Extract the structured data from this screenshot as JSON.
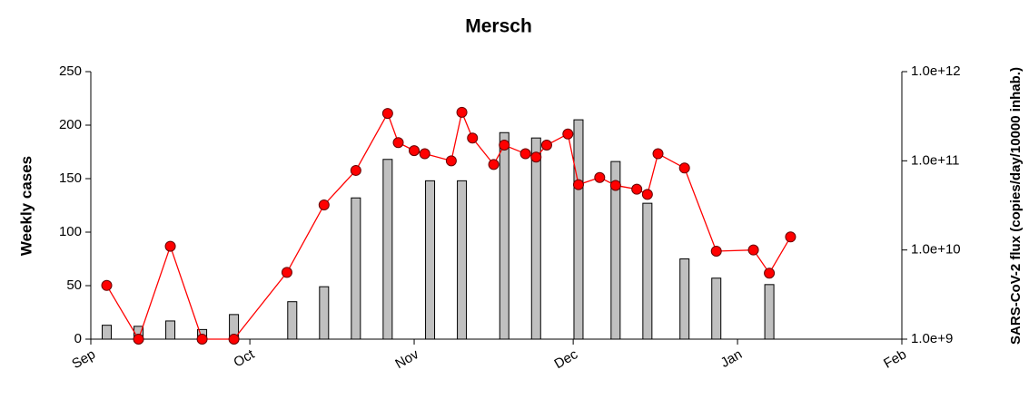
{
  "chart_data": {
    "type": "combo",
    "title": "Mersch",
    "y_label": "Weekly cases",
    "y2_label": "SARS-CoV-2 flux (copies/day/10000 inhab.)",
    "xlim": [
      0,
      153
    ],
    "xticks": [
      {
        "value": 0,
        "label": "Sep"
      },
      {
        "value": 30,
        "label": "Oct"
      },
      {
        "value": 61,
        "label": "Nov"
      },
      {
        "value": 91,
        "label": "Dec"
      },
      {
        "value": 122,
        "label": "Jan"
      },
      {
        "value": 153,
        "label": "Feb"
      }
    ],
    "ylim": [
      0,
      250
    ],
    "yticks": [
      0,
      50,
      100,
      150,
      200,
      250
    ],
    "y2lim": [
      1000000000,
      1000000000000
    ],
    "y2log": true,
    "y2ticks": [
      {
        "value": 1000000000,
        "label": "1.0e+9"
      },
      {
        "value": 10000000000,
        "label": "1.0e+10"
      },
      {
        "value": 100000000000,
        "label": "1.0e+11"
      },
      {
        "value": 1000000000000,
        "label": "1.0e+12"
      }
    ],
    "series": [
      {
        "type": "bar",
        "color": "#c0c0c0",
        "x": [
          3,
          9,
          15,
          21,
          27,
          38,
          44,
          50,
          56,
          64,
          70,
          78,
          84,
          92,
          99,
          105,
          112,
          118,
          128
        ],
        "values": [
          13,
          12,
          17,
          9,
          23,
          35,
          49,
          132,
          168,
          148,
          148,
          193,
          188,
          205,
          166,
          127,
          75,
          57,
          51
        ]
      },
      {
        "type": "line",
        "axis": "y2",
        "color": "#ff0000",
        "x": [
          3,
          9,
          15,
          21,
          27,
          37,
          44,
          50,
          56,
          58,
          61,
          63,
          68,
          70,
          72,
          76,
          78,
          82,
          84,
          86,
          90,
          92,
          96,
          99,
          103,
          105,
          107,
          112,
          118,
          125,
          128,
          132
        ],
        "values": [
          4000000000,
          1000000000,
          11000000000,
          1000000000,
          1000000000,
          5600000000,
          32000000000,
          78000000000,
          340000000000,
          160000000000,
          130000000000,
          120000000000,
          100000000000,
          350000000000,
          180000000000,
          91000000000,
          150000000000,
          120000000000,
          110000000000,
          150000000000,
          200000000000,
          54000000000,
          65000000000,
          53000000000,
          48000000000,
          42000000000,
          120000000000,
          83000000000,
          9700000000,
          10000000000,
          5500000000,
          14000000000
        ]
      }
    ]
  }
}
